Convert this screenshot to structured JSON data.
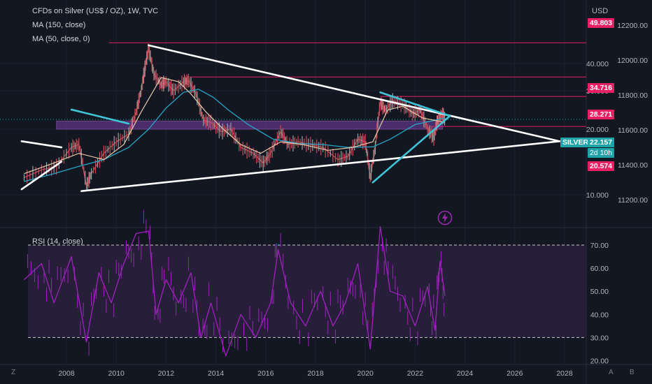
{
  "colors": {
    "background": "#131722",
    "grid": "#1e222d",
    "price": "#c94a55",
    "price_up": "#9aa0a6",
    "ma150": "#26a6c4",
    "ma50": "#e8c8a8",
    "trendline": "#ffffff",
    "trendline_cyan": "#40c4d8",
    "resistance": "#e91e63",
    "zone": "#7b3fa8",
    "rsi": "#a020c0",
    "rsi_band": "#2a1f3d",
    "silver_tag": "#1da3a8",
    "lightning": "#9c27b0"
  },
  "legend": {
    "title": "CFDs on Silver (US$ / OZ), 1W, TVC",
    "ma150": "MA (150, close)",
    "ma50": "MA (50, close, 0)",
    "rsi": "RSI (14, close)"
  },
  "axis": {
    "currency": "USD",
    "corner_z": "Z",
    "corner_a": "A",
    "corner_b": "B"
  },
  "tags": {
    "level_1": "49.803",
    "level_2": "34.716",
    "level_3": "28.271",
    "symbol": "SILVER",
    "last_price": "22.157",
    "countdown": "2d 10h",
    "level_4": "20.574"
  },
  "lightning_icon": "lightning-icon",
  "chart_data": [
    {
      "type": "line",
      "title": "CFDs on Silver (US$ / OZ), 1W, TVC",
      "x_unit": "year",
      "xlim": [
        2006.2,
        2029.2
      ],
      "x_ticks": [
        "2008",
        "2010",
        "2012",
        "2014",
        "2016",
        "2018",
        "2020",
        "2022",
        "2024",
        "2026",
        "2028"
      ],
      "y_scale": "log",
      "y_ticks_left": [
        "40.000",
        "30.000",
        "20.000",
        "10.000"
      ],
      "y_ticks_right": [
        "12200.00",
        "12000.00",
        "11800.00",
        "11600.00",
        "11400.00",
        "11200.00"
      ],
      "horizontal_levels": [
        49.803,
        34.716,
        28.271,
        20.574
      ],
      "last_price": 22.157,
      "series": [
        {
          "name": "CFDs on Silver (US$ / OZ), 1W, TVC",
          "x": [
            2006.3,
            2007.0,
            2007.6,
            2008.2,
            2008.5,
            2008.8,
            2009.0,
            2009.5,
            2010.0,
            2010.5,
            2010.8,
            2011.0,
            2011.15,
            2011.3,
            2011.5,
            2011.8,
            2012.0,
            2012.3,
            2012.7,
            2012.9,
            2013.2,
            2013.5,
            2013.8,
            2014.2,
            2014.6,
            2015.0,
            2015.5,
            2015.9,
            2016.2,
            2016.6,
            2016.9,
            2017.3,
            2017.8,
            2018.3,
            2018.9,
            2019.3,
            2019.7,
            2020.0,
            2020.2,
            2020.4,
            2020.6,
            2020.8,
            2021.1,
            2021.5,
            2021.9,
            2022.2,
            2022.5,
            2022.75,
            2022.9,
            2023.1,
            2023.2
          ],
          "values": [
            12.0,
            13.0,
            13.5,
            16.5,
            17.0,
            11.0,
            12.5,
            15.5,
            17.5,
            19.0,
            24.0,
            30.0,
            38.0,
            47.0,
            36.0,
            32.0,
            33.0,
            30.0,
            33.0,
            33.5,
            29.0,
            22.0,
            21.5,
            19.5,
            20.0,
            16.5,
            15.5,
            14.0,
            15.5,
            19.5,
            17.0,
            17.5,
            17.0,
            16.5,
            14.5,
            15.0,
            18.0,
            17.5,
            12.0,
            16.5,
            26.5,
            24.5,
            27.0,
            26.0,
            23.5,
            24.5,
            20.0,
            18.3,
            22.0,
            23.5,
            22.2
          ]
        },
        {
          "name": "MA (150, close)",
          "x": [
            2006.3,
            2007.5,
            2008.5,
            2009.5,
            2010.5,
            2011.3,
            2012.0,
            2012.7,
            2013.3,
            2013.9,
            2014.5,
            2015.3,
            2016.3,
            2017.3,
            2018.3,
            2019.3,
            2020.3,
            2021.0,
            2022.0,
            2023.2
          ],
          "values": [
            11.5,
            12.5,
            13.5,
            14.5,
            16.5,
            20.0,
            25.0,
            29.5,
            30.5,
            28.0,
            24.5,
            21.0,
            18.0,
            17.2,
            17.0,
            16.5,
            16.6,
            18.0,
            21.0,
            22.5
          ]
        },
        {
          "name": "MA (50, close, 0)",
          "x": [
            2006.3,
            2007.5,
            2008.5,
            2009.5,
            2010.3,
            2011.0,
            2011.8,
            2012.5,
            2013.0,
            2013.6,
            2014.3,
            2015.0,
            2015.8,
            2016.6,
            2017.5,
            2018.5,
            2019.5,
            2020.3,
            2020.9,
            2021.5,
            2022.3,
            2023.2
          ],
          "values": [
            12.5,
            14.0,
            15.5,
            14.5,
            17.0,
            24.0,
            34.5,
            33.0,
            29.0,
            24.0,
            20.0,
            17.0,
            15.5,
            17.5,
            17.0,
            16.0,
            16.5,
            17.5,
            24.5,
            25.5,
            22.5,
            21.5
          ]
        }
      ]
    },
    {
      "type": "line",
      "title": "RSI (14, close)",
      "x_unit": "year",
      "xlim": [
        2006.2,
        2029.2
      ],
      "ylim": [
        19,
        73
      ],
      "y_ticks": [
        "70.00",
        "60.00",
        "50.00",
        "40.00",
        "30.00",
        "20.00"
      ],
      "bands": [
        30,
        70
      ],
      "series": [
        {
          "name": "RSI (14, close)",
          "x": [
            2006.3,
            2007.0,
            2007.5,
            2008.2,
            2008.8,
            2009.3,
            2009.8,
            2010.3,
            2010.8,
            2011.3,
            2011.6,
            2012.0,
            2012.5,
            2013.0,
            2013.4,
            2013.8,
            2014.4,
            2015.0,
            2015.6,
            2016.2,
            2016.5,
            2017.0,
            2017.6,
            2018.2,
            2018.7,
            2019.2,
            2019.7,
            2020.2,
            2020.6,
            2021.0,
            2021.5,
            2022.0,
            2022.5,
            2022.8,
            2023.0,
            2023.2
          ],
          "values": [
            55,
            62,
            45,
            65,
            28,
            58,
            45,
            62,
            75,
            76,
            40,
            55,
            45,
            58,
            30,
            45,
            22,
            40,
            30,
            45,
            68,
            45,
            35,
            50,
            35,
            45,
            62,
            25,
            78,
            50,
            48,
            35,
            52,
            33,
            63,
            48
          ]
        }
      ]
    }
  ]
}
